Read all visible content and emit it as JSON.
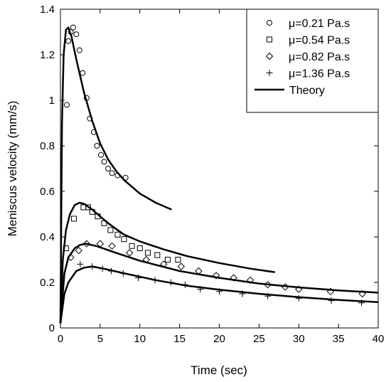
{
  "chart_data": {
    "type": "scatter",
    "xlabel": "Time (sec)",
    "ylabel": "Meniscus velocity (mm/s)",
    "xlim": [
      0,
      40
    ],
    "ylim": [
      0,
      1.4
    ],
    "x_ticks": [
      "0",
      "5",
      "10",
      "15",
      "20",
      "25",
      "30",
      "35",
      "40"
    ],
    "y_ticks": [
      "0",
      "0.2",
      "0.4",
      "0.6",
      "0.8",
      "1",
      "1.2",
      "1.4"
    ],
    "grid": false,
    "legend_position": "top-right",
    "series": [
      {
        "name": "μ=0.21 Pa.s",
        "marker": "circle",
        "points": [
          [
            0.8,
            0.98
          ],
          [
            1.0,
            1.26
          ],
          [
            1.3,
            1.3
          ],
          [
            1.6,
            1.32
          ],
          [
            2.0,
            1.29
          ],
          [
            2.4,
            1.22
          ],
          [
            2.8,
            1.12
          ],
          [
            3.3,
            1.01
          ],
          [
            3.7,
            0.92
          ],
          [
            4.2,
            0.86
          ],
          [
            4.6,
            0.8
          ],
          [
            5.1,
            0.76
          ],
          [
            5.5,
            0.73
          ],
          [
            6.0,
            0.7
          ],
          [
            6.5,
            0.68
          ],
          [
            7.2,
            0.67
          ],
          [
            8.2,
            0.66
          ]
        ]
      },
      {
        "name": "μ=0.54 Pa.s",
        "marker": "square",
        "points": [
          [
            0.7,
            0.35
          ],
          [
            1.7,
            0.48
          ],
          [
            2.9,
            0.53
          ],
          [
            3.5,
            0.53
          ],
          [
            4.0,
            0.51
          ],
          [
            4.7,
            0.49
          ],
          [
            5.5,
            0.46
          ],
          [
            6.3,
            0.43
          ],
          [
            7.2,
            0.41
          ],
          [
            8.0,
            0.39
          ],
          [
            9.0,
            0.36
          ],
          [
            10.0,
            0.35
          ],
          [
            11.0,
            0.33
          ],
          [
            12.2,
            0.32
          ],
          [
            13.5,
            0.3
          ],
          [
            14.8,
            0.3
          ]
        ]
      },
      {
        "name": "μ=0.82 Pa.s",
        "marker": "diamond",
        "points": [
          [
            1.3,
            0.31
          ],
          [
            2.3,
            0.34
          ],
          [
            3.3,
            0.37
          ],
          [
            5.0,
            0.37
          ],
          [
            6.5,
            0.36
          ],
          [
            8.7,
            0.33
          ],
          [
            10.8,
            0.3
          ],
          [
            13.0,
            0.28
          ],
          [
            15.2,
            0.27
          ],
          [
            17.4,
            0.25
          ],
          [
            19.6,
            0.23
          ],
          [
            21.8,
            0.22
          ],
          [
            23.9,
            0.21
          ],
          [
            26.1,
            0.19
          ],
          [
            28.3,
            0.18
          ],
          [
            30.0,
            0.17
          ],
          [
            34.0,
            0.16
          ],
          [
            38.0,
            0.15
          ]
        ]
      },
      {
        "name": "μ=1.36 Pa.s",
        "marker": "plus",
        "points": [
          [
            2.5,
            0.28
          ],
          [
            4.0,
            0.27
          ],
          [
            5.3,
            0.26
          ],
          [
            6.4,
            0.25
          ],
          [
            7.9,
            0.24
          ],
          [
            9.8,
            0.22
          ],
          [
            11.9,
            0.21
          ],
          [
            13.9,
            0.2
          ],
          [
            15.7,
            0.19
          ],
          [
            17.6,
            0.17
          ],
          [
            20.0,
            0.16
          ],
          [
            22.9,
            0.15
          ],
          [
            26.1,
            0.14
          ],
          [
            30.0,
            0.13
          ],
          [
            34.1,
            0.12
          ],
          [
            37.9,
            0.11
          ]
        ]
      },
      {
        "name": "Theory",
        "marker": "line",
        "curves": [
          [
            [
              0,
              0.02
            ],
            [
              0.2,
              0.9
            ],
            [
              0.4,
              1.2
            ],
            [
              0.7,
              1.31
            ],
            [
              1.0,
              1.32
            ],
            [
              1.4,
              1.28
            ],
            [
              2.0,
              1.18
            ],
            [
              3.0,
              1.03
            ],
            [
              4.0,
              0.91
            ],
            [
              5.0,
              0.81
            ],
            [
              6.0,
              0.74
            ],
            [
              7.0,
              0.69
            ],
            [
              8.0,
              0.65
            ],
            [
              10.0,
              0.59
            ],
            [
              12.0,
              0.55
            ],
            [
              14.0,
              0.52
            ]
          ],
          [
            [
              0,
              0.02
            ],
            [
              0.3,
              0.3
            ],
            [
              0.7,
              0.43
            ],
            [
              1.2,
              0.5
            ],
            [
              1.8,
              0.54
            ],
            [
              2.4,
              0.55
            ],
            [
              3.0,
              0.545
            ],
            [
              4.0,
              0.52
            ],
            [
              6.0,
              0.46
            ],
            [
              8.0,
              0.41
            ],
            [
              10.0,
              0.38
            ],
            [
              13.0,
              0.345
            ],
            [
              16.0,
              0.315
            ],
            [
              20.0,
              0.285
            ],
            [
              24.0,
              0.26
            ],
            [
              27.0,
              0.245
            ]
          ],
          [
            [
              0,
              0.02
            ],
            [
              0.5,
              0.24
            ],
            [
              1.0,
              0.31
            ],
            [
              1.8,
              0.35
            ],
            [
              2.5,
              0.365
            ],
            [
              3.2,
              0.37
            ],
            [
              4.5,
              0.36
            ],
            [
              7.0,
              0.33
            ],
            [
              10.0,
              0.295
            ],
            [
              15.0,
              0.25
            ],
            [
              20.0,
              0.22
            ],
            [
              25.0,
              0.195
            ],
            [
              30.0,
              0.178
            ],
            [
              35.0,
              0.165
            ],
            [
              40.0,
              0.155
            ]
          ],
          [
            [
              0,
              0.02
            ],
            [
              0.5,
              0.15
            ],
            [
              1.0,
              0.2
            ],
            [
              2.0,
              0.25
            ],
            [
              3.0,
              0.265
            ],
            [
              4.0,
              0.27
            ],
            [
              5.5,
              0.26
            ],
            [
              8.0,
              0.24
            ],
            [
              12.0,
              0.21
            ],
            [
              16.0,
              0.185
            ],
            [
              20.0,
              0.168
            ],
            [
              25.0,
              0.15
            ],
            [
              30.0,
              0.135
            ],
            [
              35.0,
              0.123
            ],
            [
              40.0,
              0.113
            ]
          ]
        ]
      }
    ]
  }
}
